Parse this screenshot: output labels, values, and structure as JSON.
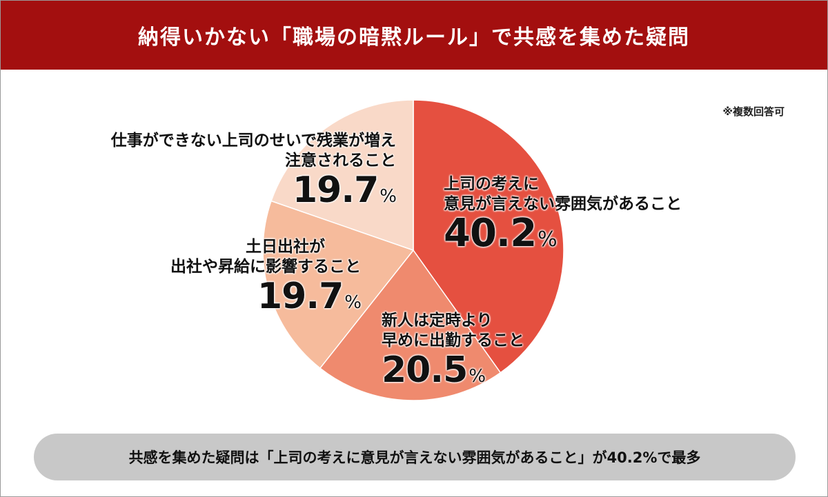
{
  "title": "納得いかない「職場の暗黙ルール」で共感を集めた疑問",
  "note": "※複数回答可",
  "summary": "共感を集めた疑問は「上司の考えに意見が言えない雰囲気があること」が40.2%で最多",
  "colors": {
    "header": "#a30f0f",
    "slice1": "#e55040",
    "slice2": "#ef8a6e",
    "slice3": "#f6bb9c",
    "slice4": "#f9d9c8",
    "summary_bg": "#c8c8c8"
  },
  "labels": [
    {
      "lines": [
        "上司の考えに",
        "意見が言えない雰囲気があること"
      ],
      "value": "40.2",
      "unit": "%"
    },
    {
      "lines": [
        "新人は定時より",
        "早めに出勤すること"
      ],
      "value": "20.5",
      "unit": "%"
    },
    {
      "lines": [
        "土日出社が",
        "出社や昇給に影響すること"
      ],
      "value": "19.7",
      "unit": "%"
    },
    {
      "lines": [
        "仕事ができない上司のせいで残業が増え",
        "注意されること"
      ],
      "value": "19.7",
      "unit": "%"
    }
  ],
  "chart_data": {
    "type": "pie",
    "start": "12 o'clock, clockwise",
    "categories": [
      "上司の考えに意見が言えない雰囲気があること",
      "新人は定時より早めに出勤すること",
      "土日出社が出社や昇給に影響すること",
      "仕事ができない上司のせいで残業が増え注意されること"
    ],
    "values": [
      40.2,
      20.5,
      19.7,
      19.7
    ],
    "unit": "%"
  }
}
